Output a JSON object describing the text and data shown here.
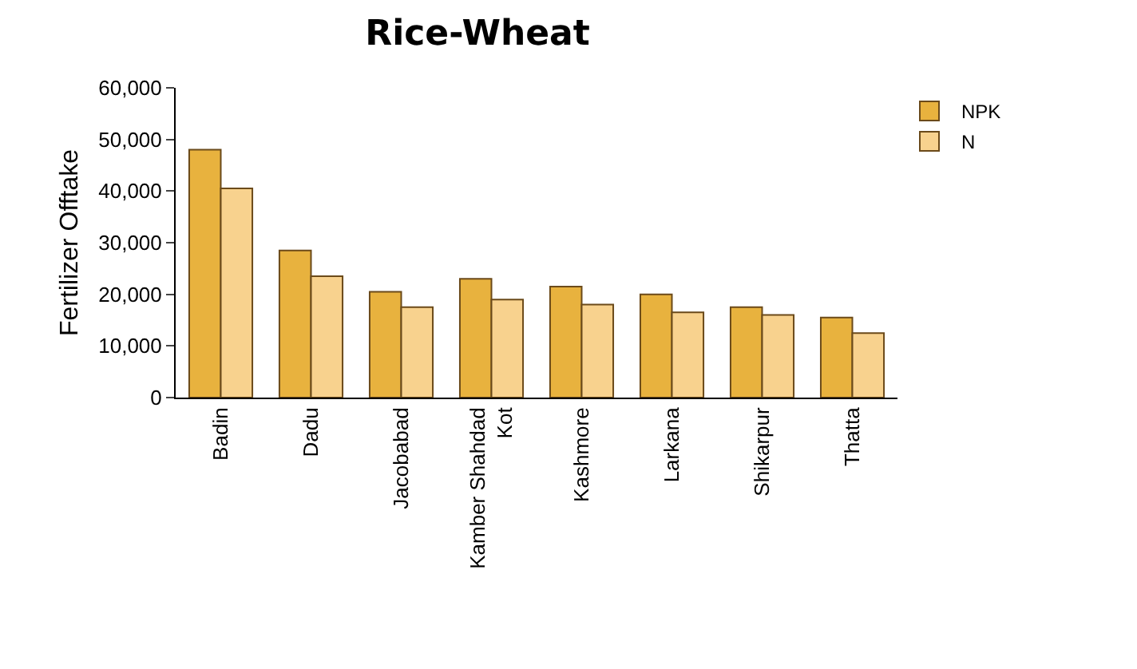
{
  "chart_data": {
    "type": "bar",
    "title": "Rice-Wheat",
    "ylabel": "Fertilizer Offtake",
    "categories": [
      "Badin",
      "Dadu",
      "Jacobabad",
      "Kamber Shahdad\nKot",
      "Kashmore",
      "Larkana",
      "Shikarpur",
      "Thatta"
    ],
    "series": [
      {
        "name": "NPK",
        "color": "#e8b23e",
        "values": [
          48000,
          28500,
          20500,
          23000,
          21500,
          20000,
          17500,
          15500
        ]
      },
      {
        "name": "N",
        "color": "#f8d28e",
        "values": [
          40500,
          23500,
          17500,
          19000,
          18000,
          16500,
          16000,
          12500
        ]
      }
    ],
    "ylim": [
      0,
      60000
    ],
    "yticks": [
      {
        "value": 0,
        "label": "0"
      },
      {
        "value": 10000,
        "label": "10,000"
      },
      {
        "value": 20000,
        "label": "20,000"
      },
      {
        "value": 30000,
        "label": "30,000"
      },
      {
        "value": 40000,
        "label": "40,000"
      },
      {
        "value": 50000,
        "label": "50,000"
      },
      {
        "value": 60000,
        "label": "60,000"
      }
    ],
    "legend": "top right"
  }
}
